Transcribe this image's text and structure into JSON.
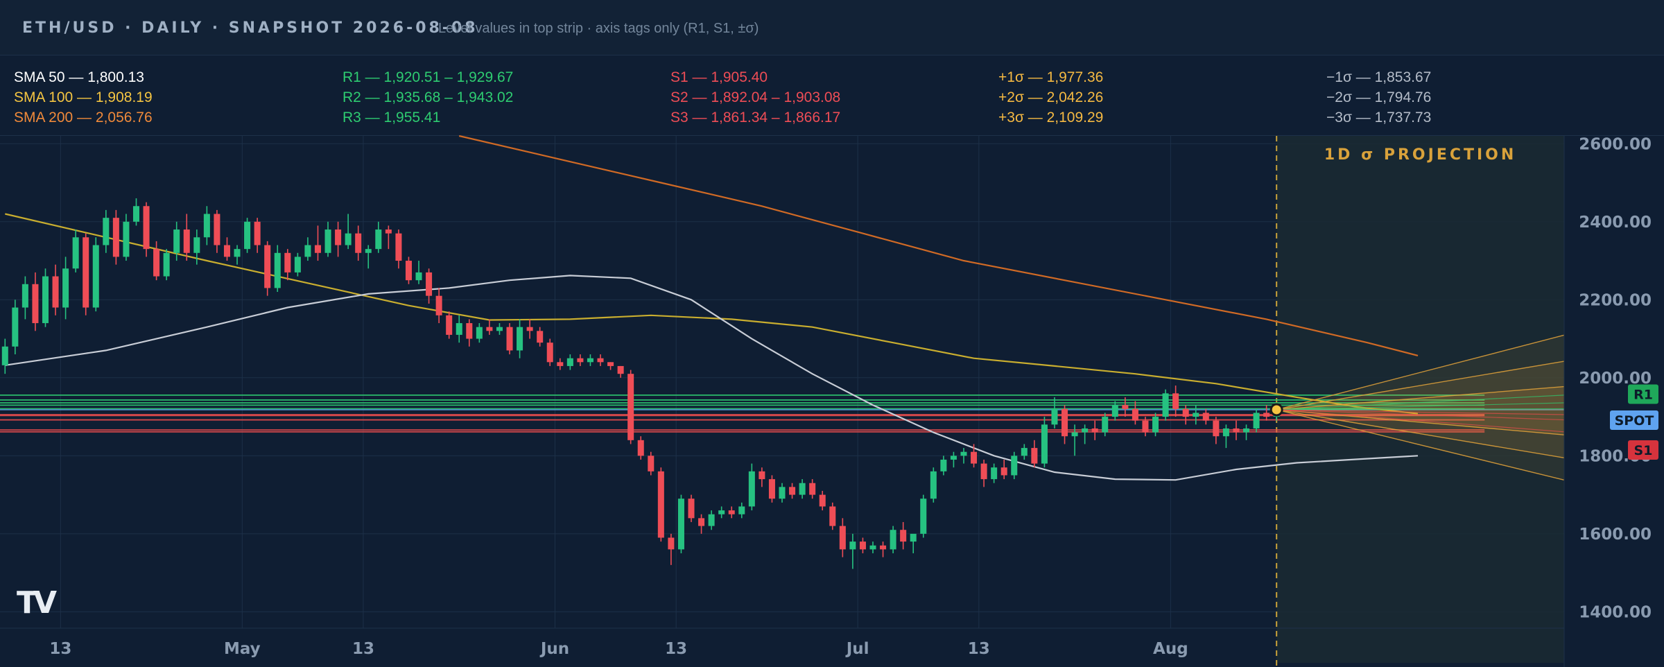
{
  "header": {
    "title": "ETH/USD · DAILY · SNAPSHOT 2026-08-08",
    "subtitle": "Level values in top strip · axis tags only (R1, S1, ±σ)"
  },
  "level_strip": {
    "sma": [
      "SMA 50 — 1,800.13",
      "SMA 100 — 1,908.19",
      "SMA 200 — 2,056.76"
    ],
    "resistance": [
      "R1 — 1,920.51 – 1,929.67",
      "R2 — 1,935.68 – 1,943.02",
      "R3 — 1,955.41"
    ],
    "support": [
      "S1 — 1,905.40",
      "S2 — 1,892.04 – 1,903.08",
      "S3 — 1,861.34 – 1,866.17"
    ],
    "plus_sigma": [
      "+1σ — 1,977.36",
      "+2σ — 2,042.26",
      "+3σ — 2,109.29"
    ],
    "minus_sigma": [
      "−1σ — 1,853.67",
      "−2σ — 1,794.76",
      "−3σ — 1,737.73"
    ]
  },
  "colors": {
    "background": "#0f1e33",
    "up": "#26c281",
    "down": "#ef4d56",
    "sma50": "#c8cdd6",
    "sma100": "#c9ae2f",
    "sma200": "#d06a25",
    "resistance": "#2ecc71",
    "support": "#e74c4c",
    "sigma": "#e3a33a",
    "spot_tag": "#5fa3f0",
    "text_white": "#ffffff",
    "text_yellow": "#f5c542",
    "text_orange": "#f08a3a",
    "text_green": "#2ecc71",
    "text_red": "#ef4d56",
    "text_sigma_plus": "#f5b942",
    "text_sigma_minus": "#b4bcc8"
  },
  "chart_data": {
    "type": "candlestick",
    "symbol": "ETH/USD",
    "interval": "daily",
    "projection_label": "1D σ PROJECTION",
    "logo": "TV",
    "y_axis": {
      "ticks": [
        1400,
        1600,
        1800,
        2000,
        2200,
        2400,
        2600
      ],
      "tick_labels": [
        "1400.00",
        "1600.00",
        "1800.00",
        "2000.00",
        "2200.00",
        "2400.00",
        "2600.00"
      ],
      "ylim": [
        1358,
        2620
      ]
    },
    "x_axis": {
      "labels": [
        {
          "date": "2026-04-13",
          "text": "13"
        },
        {
          "date": "2026-05-01",
          "text": "May"
        },
        {
          "date": "2026-05-13",
          "text": "13"
        },
        {
          "date": "2026-06-01",
          "text": "Jun"
        },
        {
          "date": "2026-06-13",
          "text": "13"
        },
        {
          "date": "2026-07-01",
          "text": "Jul"
        },
        {
          "date": "2026-07-13",
          "text": "13"
        },
        {
          "date": "2026-08-01",
          "text": "Aug"
        }
      ],
      "xlim": [
        "2026-04-07",
        "2026-09-09"
      ]
    },
    "candles_start": "2026-04-07",
    "ohlc": [
      [
        2032,
        2100,
        2010,
        2080
      ],
      [
        2080,
        2200,
        2060,
        2180
      ],
      [
        2180,
        2260,
        2150,
        2240
      ],
      [
        2240,
        2270,
        2120,
        2140
      ],
      [
        2140,
        2280,
        2130,
        2260
      ],
      [
        2260,
        2290,
        2160,
        2180
      ],
      [
        2180,
        2310,
        2150,
        2280
      ],
      [
        2280,
        2380,
        2270,
        2360
      ],
      [
        2360,
        2370,
        2160,
        2180
      ],
      [
        2180,
        2360,
        2170,
        2340
      ],
      [
        2340,
        2430,
        2320,
        2410
      ],
      [
        2410,
        2430,
        2290,
        2310
      ],
      [
        2310,
        2420,
        2300,
        2400
      ],
      [
        2400,
        2460,
        2390,
        2440
      ],
      [
        2440,
        2450,
        2310,
        2330
      ],
      [
        2330,
        2350,
        2250,
        2260
      ],
      [
        2260,
        2330,
        2250,
        2320
      ],
      [
        2320,
        2400,
        2300,
        2380
      ],
      [
        2380,
        2420,
        2300,
        2320
      ],
      [
        2320,
        2380,
        2290,
        2360
      ],
      [
        2360,
        2440,
        2340,
        2420
      ],
      [
        2420,
        2430,
        2320,
        2340
      ],
      [
        2340,
        2360,
        2300,
        2310
      ],
      [
        2310,
        2340,
        2290,
        2330
      ],
      [
        2330,
        2410,
        2320,
        2400
      ],
      [
        2400,
        2410,
        2320,
        2340
      ],
      [
        2340,
        2350,
        2210,
        2230
      ],
      [
        2230,
        2340,
        2220,
        2320
      ],
      [
        2320,
        2330,
        2250,
        2270
      ],
      [
        2270,
        2320,
        2260,
        2310
      ],
      [
        2310,
        2360,
        2300,
        2340
      ],
      [
        2340,
        2390,
        2300,
        2320
      ],
      [
        2320,
        2400,
        2310,
        2380
      ],
      [
        2380,
        2400,
        2310,
        2340
      ],
      [
        2340,
        2420,
        2330,
        2370
      ],
      [
        2370,
        2390,
        2300,
        2320
      ],
      [
        2320,
        2340,
        2280,
        2330
      ],
      [
        2330,
        2400,
        2320,
        2380
      ],
      [
        2380,
        2390,
        2330,
        2370
      ],
      [
        2370,
        2380,
        2280,
        2300
      ],
      [
        2300,
        2310,
        2240,
        2250
      ],
      [
        2250,
        2300,
        2240,
        2270
      ],
      [
        2270,
        2280,
        2190,
        2210
      ],
      [
        2210,
        2230,
        2140,
        2160
      ],
      [
        2160,
        2170,
        2100,
        2110
      ],
      [
        2110,
        2160,
        2090,
        2140
      ],
      [
        2140,
        2150,
        2080,
        2100
      ],
      [
        2100,
        2140,
        2090,
        2130
      ],
      [
        2130,
        2150,
        2110,
        2120
      ],
      [
        2120,
        2140,
        2110,
        2130
      ],
      [
        2130,
        2140,
        2060,
        2070
      ],
      [
        2070,
        2150,
        2050,
        2130
      ],
      [
        2130,
        2150,
        2100,
        2120
      ],
      [
        2120,
        2130,
        2080,
        2090
      ],
      [
        2090,
        2100,
        2030,
        2040
      ],
      [
        2040,
        2050,
        2020,
        2030
      ],
      [
        2030,
        2060,
        2020,
        2050
      ],
      [
        2050,
        2060,
        2030,
        2040
      ],
      [
        2040,
        2060,
        2030,
        2050
      ],
      [
        2050,
        2060,
        2030,
        2040
      ],
      [
        2040,
        2040,
        2020,
        2030
      ],
      [
        2030,
        2030,
        2000,
        2010
      ],
      [
        2010,
        2020,
        1830,
        1840
      ],
      [
        1840,
        1850,
        1790,
        1800
      ],
      [
        1800,
        1810,
        1750,
        1760
      ],
      [
        1760,
        1770,
        1580,
        1590
      ],
      [
        1590,
        1600,
        1520,
        1560
      ],
      [
        1560,
        1700,
        1550,
        1690
      ],
      [
        1690,
        1700,
        1630,
        1640
      ],
      [
        1640,
        1650,
        1600,
        1620
      ],
      [
        1620,
        1660,
        1610,
        1650
      ],
      [
        1650,
        1670,
        1640,
        1660
      ],
      [
        1660,
        1670,
        1640,
        1650
      ],
      [
        1650,
        1680,
        1640,
        1670
      ],
      [
        1670,
        1780,
        1660,
        1760
      ],
      [
        1760,
        1770,
        1720,
        1740
      ],
      [
        1740,
        1750,
        1680,
        1690
      ],
      [
        1690,
        1730,
        1680,
        1720
      ],
      [
        1720,
        1730,
        1690,
        1700
      ],
      [
        1700,
        1740,
        1690,
        1730
      ],
      [
        1730,
        1740,
        1690,
        1700
      ],
      [
        1700,
        1710,
        1660,
        1670
      ],
      [
        1670,
        1680,
        1610,
        1620
      ],
      [
        1620,
        1640,
        1540,
        1560
      ],
      [
        1560,
        1600,
        1510,
        1580
      ],
      [
        1580,
        1590,
        1550,
        1560
      ],
      [
        1560,
        1580,
        1550,
        1570
      ],
      [
        1570,
        1580,
        1540,
        1560
      ],
      [
        1560,
        1620,
        1550,
        1610
      ],
      [
        1610,
        1630,
        1560,
        1580
      ],
      [
        1580,
        1590,
        1550,
        1600
      ],
      [
        1600,
        1700,
        1590,
        1690
      ],
      [
        1690,
        1770,
        1680,
        1760
      ],
      [
        1760,
        1800,
        1750,
        1790
      ],
      [
        1790,
        1810,
        1770,
        1800
      ],
      [
        1800,
        1820,
        1780,
        1810
      ],
      [
        1810,
        1830,
        1770,
        1780
      ],
      [
        1780,
        1790,
        1720,
        1740
      ],
      [
        1740,
        1780,
        1730,
        1770
      ],
      [
        1770,
        1790,
        1740,
        1750
      ],
      [
        1750,
        1810,
        1740,
        1800
      ],
      [
        1800,
        1830,
        1790,
        1820
      ],
      [
        1820,
        1840,
        1770,
        1780
      ],
      [
        1780,
        1900,
        1770,
        1880
      ],
      [
        1880,
        1950,
        1870,
        1920
      ],
      [
        1920,
        1930,
        1830,
        1850
      ],
      [
        1850,
        1880,
        1800,
        1860
      ],
      [
        1860,
        1880,
        1830,
        1870
      ],
      [
        1870,
        1890,
        1840,
        1860
      ],
      [
        1860,
        1910,
        1850,
        1900
      ],
      [
        1900,
        1940,
        1890,
        1930
      ],
      [
        1930,
        1950,
        1900,
        1920
      ],
      [
        1920,
        1940,
        1880,
        1890
      ],
      [
        1890,
        1900,
        1850,
        1860
      ],
      [
        1860,
        1910,
        1850,
        1900
      ],
      [
        1900,
        1970,
        1890,
        1960
      ],
      [
        1960,
        1980,
        1900,
        1920
      ],
      [
        1920,
        1930,
        1880,
        1900
      ],
      [
        1900,
        1930,
        1880,
        1910
      ],
      [
        1910,
        1920,
        1880,
        1890
      ],
      [
        1890,
        1900,
        1830,
        1850
      ],
      [
        1850,
        1880,
        1820,
        1870
      ],
      [
        1870,
        1890,
        1840,
        1860
      ],
      [
        1860,
        1880,
        1840,
        1870
      ],
      [
        1870,
        1920,
        1860,
        1910
      ],
      [
        1910,
        1930,
        1890,
        1900
      ],
      [
        1900,
        1930,
        1890,
        1918
      ]
    ],
    "sma50_line": [
      [
        0,
        2032
      ],
      [
        10,
        2070
      ],
      [
        20,
        2130
      ],
      [
        28,
        2180
      ],
      [
        36,
        2215
      ],
      [
        44,
        2230
      ],
      [
        50,
        2250
      ],
      [
        56,
        2262
      ],
      [
        62,
        2255
      ],
      [
        68,
        2200
      ],
      [
        74,
        2100
      ],
      [
        80,
        2010
      ],
      [
        86,
        1930
      ],
      [
        92,
        1860
      ],
      [
        98,
        1800
      ],
      [
        104,
        1758
      ],
      [
        110,
        1740
      ],
      [
        116,
        1738
      ],
      [
        122,
        1765
      ],
      [
        128,
        1782
      ],
      [
        134,
        1791
      ],
      [
        140,
        1800
      ]
    ],
    "sma100_line": [
      [
        0,
        2420
      ],
      [
        20,
        2300
      ],
      [
        40,
        2185
      ],
      [
        48,
        2148
      ],
      [
        56,
        2150
      ],
      [
        64,
        2160
      ],
      [
        72,
        2150
      ],
      [
        80,
        2130
      ],
      [
        88,
        2090
      ],
      [
        96,
        2050
      ],
      [
        104,
        2030
      ],
      [
        112,
        2010
      ],
      [
        120,
        1985
      ],
      [
        128,
        1950
      ],
      [
        134,
        1925
      ],
      [
        140,
        1908
      ]
    ],
    "sma200_line": [
      [
        45,
        2620
      ],
      [
        55,
        2560
      ],
      [
        65,
        2500
      ],
      [
        75,
        2440
      ],
      [
        85,
        2370
      ],
      [
        95,
        2300
      ],
      [
        105,
        2250
      ],
      [
        115,
        2200
      ],
      [
        125,
        2150
      ],
      [
        135,
        2090
      ],
      [
        140,
        2056.76
      ]
    ],
    "spot": 1918,
    "resistance_levels": [
      [
        1920.51,
        1929.67
      ],
      [
        1935.68,
        1943.02
      ],
      [
        1955.41
      ]
    ],
    "support_levels": [
      [
        1905.4
      ],
      [
        1892.04,
        1903.08
      ],
      [
        1861.34,
        1866.17
      ]
    ],
    "sigma_plus": [
      1977.36,
      2042.26,
      2109.29
    ],
    "sigma_minus": [
      1853.67,
      1794.76,
      1737.73
    ],
    "axis_tags": [
      "R1",
      "SPOT",
      "S1"
    ]
  }
}
